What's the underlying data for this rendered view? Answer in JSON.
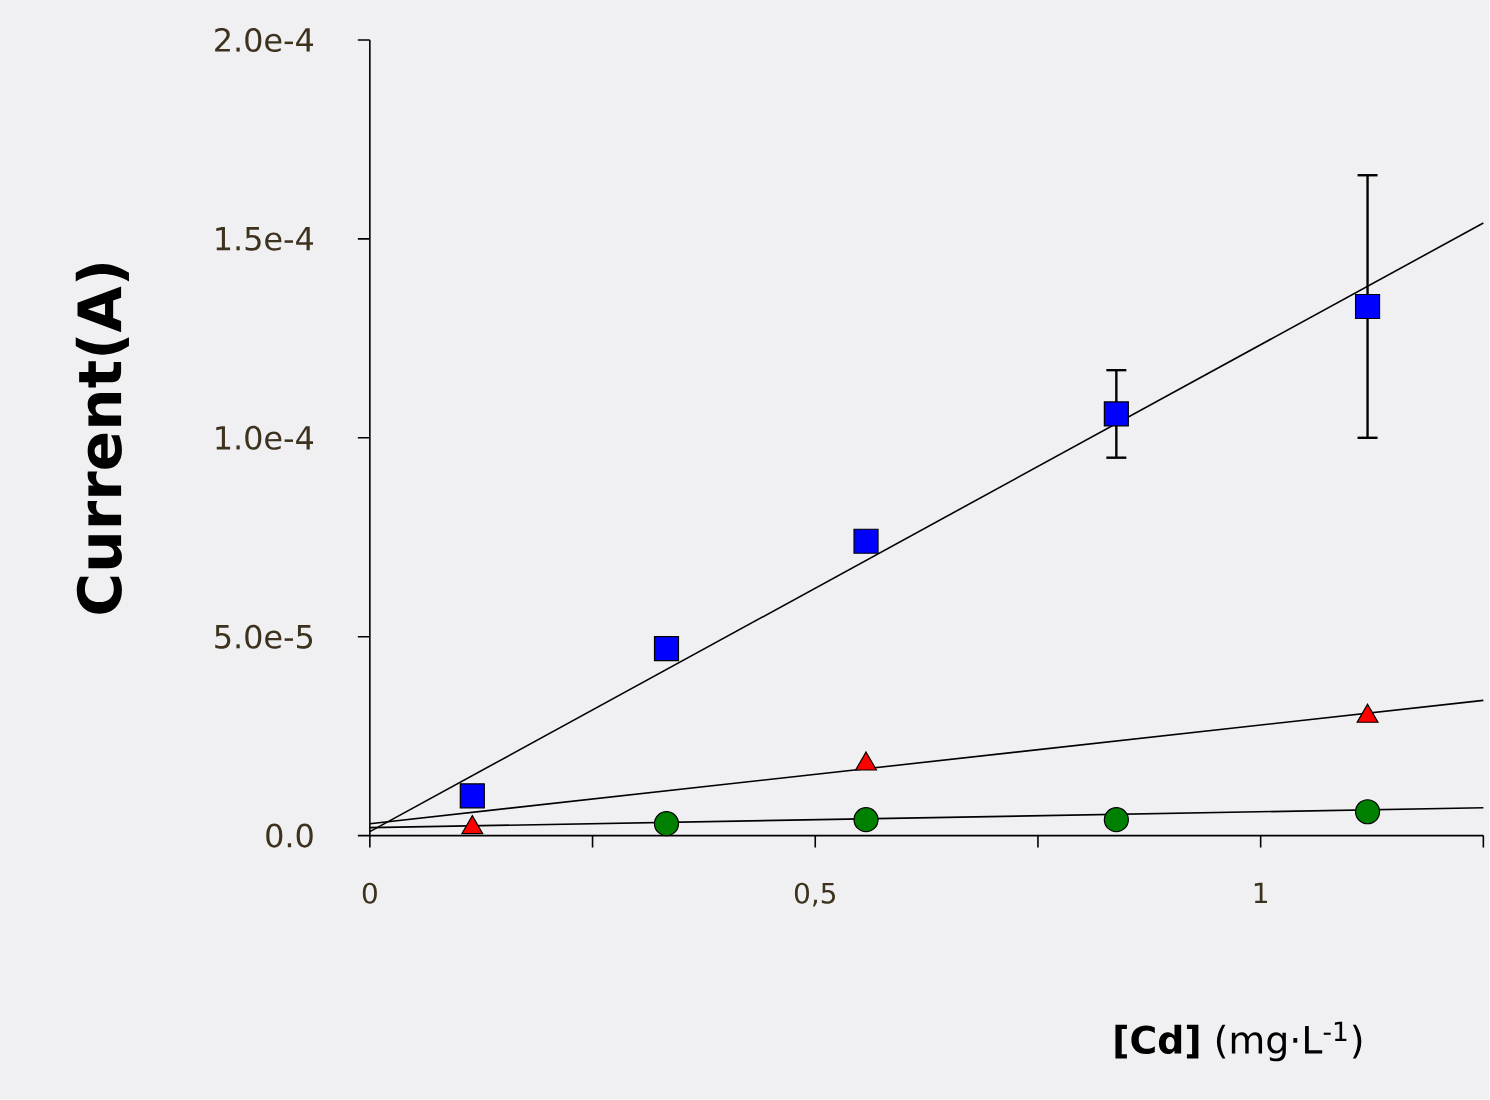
{
  "chart_data": {
    "type": "scatter",
    "xlabel": "**[Cd]** (mg·L$^{-1}$)",
    "ylabel": "Current(A)",
    "xlim": [
      0,
      1.25
    ],
    "ylim": [
      0,
      0.0002
    ],
    "xticks": [
      {
        "value": 0,
        "label": "0"
      },
      {
        "value": 0.25,
        "label": null
      },
      {
        "value": 0.5,
        "label": "0,5"
      },
      {
        "value": 0.75,
        "label": null
      },
      {
        "value": 1,
        "label": "1"
      },
      {
        "value": 1.25,
        "label": null
      }
    ],
    "yticks": [
      {
        "value": 0,
        "label": "0.0"
      },
      {
        "value": 5e-05,
        "label": "5.0e-5"
      },
      {
        "value": 0.0001,
        "label": "1.0e-4"
      },
      {
        "value": 0.00015,
        "label": "1.5e-4"
      },
      {
        "value": 0.0002,
        "label": "2.0e-4"
      }
    ],
    "grid": false,
    "series": [
      {
        "color": "#0000ff",
        "marker": "square",
        "x": [
          0.115,
          0.333,
          0.557,
          0.838,
          1.12
        ],
        "values": [
          1e-05,
          4.7e-05,
          7.4e-05,
          0.000106,
          0.000133
        ],
        "errors": [
          null,
          null,
          null,
          1.1e-05,
          3.3e-05
        ]
      },
      {
        "color": "#ff0000",
        "marker": "triangle",
        "x": [
          0.115,
          0.557,
          1.12
        ],
        "values": [
          2e-06,
          1.8e-05,
          3e-05
        ]
      },
      {
        "color": "#008000",
        "marker": "circle",
        "x": [
          0.333,
          0.557,
          0.838,
          1.12
        ],
        "values": [
          3e-06,
          4e-06,
          4e-06,
          6e-06
        ]
      },
      {
        "type": "line",
        "color": "#000000",
        "marker": "none",
        "x": [
          0,
          1.25
        ],
        "values": [
          1e-06,
          0.000154
        ]
      },
      {
        "type": "line",
        "color": "#000000",
        "marker": "none",
        "x": [
          0,
          1.25
        ],
        "values": [
          3e-06,
          3.4e-05
        ]
      },
      {
        "type": "line",
        "color": "#000000",
        "marker": "none",
        "x": [
          0,
          1.25
        ],
        "values": [
          2e-06,
          7e-06
        ]
      }
    ]
  }
}
